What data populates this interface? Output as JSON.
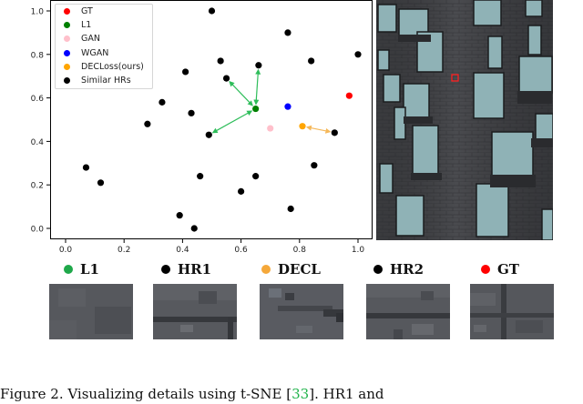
{
  "chart_data": {
    "type": "scatter",
    "title": "",
    "xlabel": "",
    "ylabel": "",
    "xlim": [
      -0.05,
      1.05
    ],
    "ylim": [
      -0.05,
      1.05
    ],
    "xticks": [
      "0.0",
      "0.2",
      "0.4",
      "0.6",
      "0.8",
      "1.0"
    ],
    "yticks": [
      "0.0",
      "0.2",
      "0.4",
      "0.6",
      "0.8",
      "1.0"
    ],
    "grid": false,
    "legend_position": "upper left",
    "series": [
      {
        "name": "GT",
        "color": "#ff0000",
        "points": [
          [
            0.97,
            0.61
          ]
        ]
      },
      {
        "name": "L1",
        "color": "#008000",
        "points": [
          [
            0.65,
            0.55
          ]
        ]
      },
      {
        "name": "GAN",
        "color": "#ffc0cb",
        "points": [
          [
            0.7,
            0.46
          ]
        ]
      },
      {
        "name": "WGAN",
        "color": "#0000ff",
        "points": [
          [
            0.76,
            0.56
          ]
        ]
      },
      {
        "name": "DECLoss(ours)",
        "color": "#ffa500",
        "points": [
          [
            0.81,
            0.47
          ]
        ]
      },
      {
        "name": "Similar HRs",
        "color": "#000000",
        "points": [
          [
            0.5,
            1.0
          ],
          [
            0.76,
            0.9
          ],
          [
            1.0,
            0.8
          ],
          [
            0.53,
            0.77
          ],
          [
            0.84,
            0.77
          ],
          [
            0.66,
            0.75
          ],
          [
            0.41,
            0.72
          ],
          [
            0.55,
            0.69
          ],
          [
            0.33,
            0.58
          ],
          [
            0.43,
            0.53
          ],
          [
            0.28,
            0.48
          ],
          [
            0.49,
            0.43
          ],
          [
            0.92,
            0.44
          ],
          [
            0.07,
            0.28
          ],
          [
            0.85,
            0.29
          ],
          [
            0.46,
            0.24
          ],
          [
            0.65,
            0.24
          ],
          [
            0.12,
            0.21
          ],
          [
            0.6,
            0.17
          ],
          [
            0.77,
            0.09
          ],
          [
            0.39,
            0.06
          ],
          [
            0.44,
            0.0
          ]
        ]
      }
    ],
    "annotations": [
      {
        "type": "double-arrow",
        "color": "#2ebd5a",
        "from": [
          0.65,
          0.55
        ],
        "to": [
          0.66,
          0.75
        ]
      },
      {
        "type": "double-arrow",
        "color": "#2ebd5a",
        "from": [
          0.65,
          0.55
        ],
        "to": [
          0.55,
          0.69
        ]
      },
      {
        "type": "double-arrow",
        "color": "#2ebd5a",
        "from": [
          0.65,
          0.55
        ],
        "to": [
          0.49,
          0.43
        ]
      },
      {
        "type": "double-arrow",
        "color": "#f5b85a",
        "from": [
          0.81,
          0.47
        ],
        "to": [
          0.92,
          0.44
        ]
      }
    ]
  },
  "legend": {
    "items": [
      {
        "label": "GT",
        "color": "#ff0000"
      },
      {
        "label": "L1",
        "color": "#008000"
      },
      {
        "label": "GAN",
        "color": "#ffc0cb"
      },
      {
        "label": "WGAN",
        "color": "#0000ff"
      },
      {
        "label": "DECLoss(ours)",
        "color": "#ffa500"
      },
      {
        "label": "Similar HRs",
        "color": "#000000"
      }
    ]
  },
  "photo": {
    "marker_color": "#ff2020"
  },
  "patches": [
    {
      "label": "L1",
      "dot_color": "#1fa84a"
    },
    {
      "label": "HR1",
      "dot_color": "#000000"
    },
    {
      "label": "DECL",
      "dot_color": "#f5a83a"
    },
    {
      "label": "HR2",
      "dot_color": "#000000"
    },
    {
      "label": "GT",
      "dot_color": "#ff0000"
    }
  ],
  "caption": {
    "prefix": "Figure 2. Visualizing details using t-SNE [",
    "ref": "33",
    "suffix": "]. HR1 and"
  }
}
